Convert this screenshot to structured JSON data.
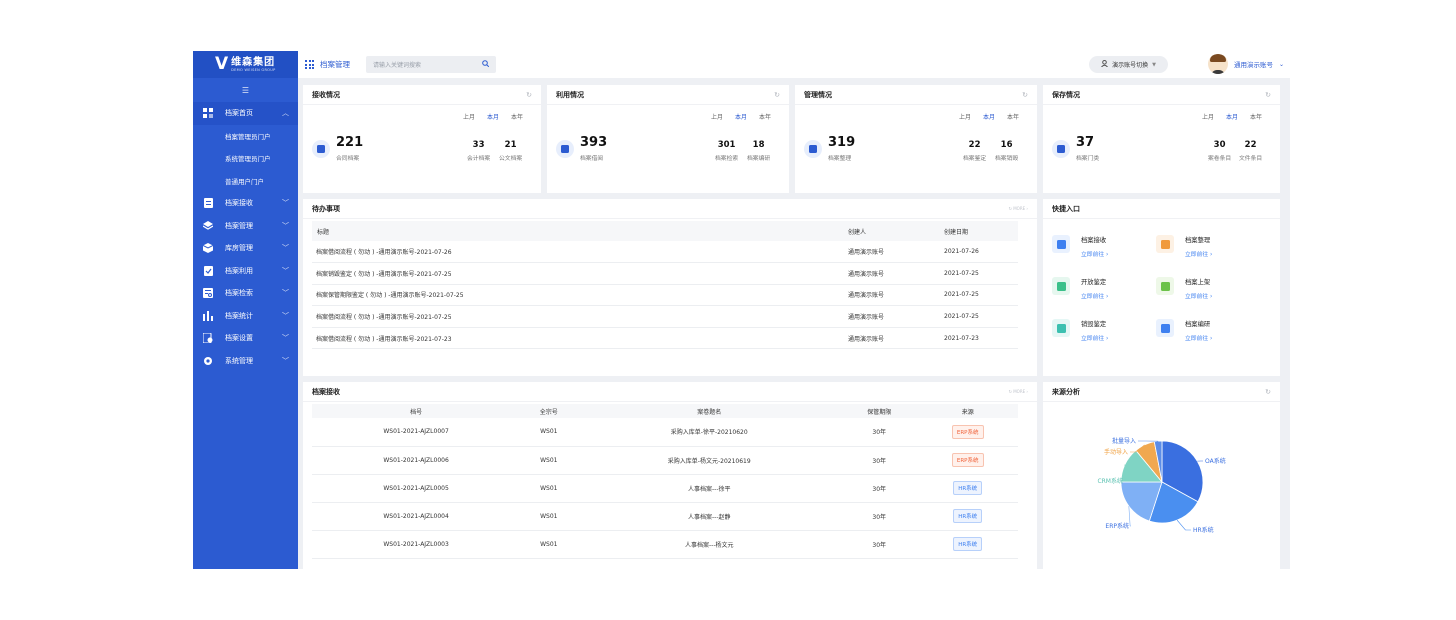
{
  "brand": {
    "name_cn": "维森集团",
    "name_en": "DEMO WEISEN GROUP"
  },
  "sidebar": {
    "items": [
      {
        "label": "档案首页",
        "active": true,
        "icon": "home-grid-icon",
        "expanded": true
      },
      {
        "label": "档案接收",
        "icon": "document-icon"
      },
      {
        "label": "档案管理",
        "icon": "layers-icon"
      },
      {
        "label": "库房管理",
        "icon": "box-icon"
      },
      {
        "label": "档案利用",
        "icon": "checklist-icon"
      },
      {
        "label": "档案检索",
        "icon": "search-doc-icon"
      },
      {
        "label": "档案统计",
        "icon": "bar-chart-icon"
      },
      {
        "label": "档案设置",
        "icon": "settings-doc-icon"
      },
      {
        "label": "系统管理",
        "icon": "gear-icon"
      }
    ],
    "subitems": [
      "档案管理员门户",
      "系统管理员门户",
      "普通用户门户"
    ]
  },
  "topbar": {
    "title": "档案管理",
    "search_placeholder": "请输入关键词搜索",
    "switch_label": "演示账号切换",
    "user_name": "通用演示账号"
  },
  "stats": [
    {
      "title": "接收情况",
      "tabs": [
        "上月",
        "本月",
        "本年"
      ],
      "active_tab": "本月",
      "main_value": "221",
      "main_label": "合同档案",
      "minis": [
        {
          "value": "33",
          "label": "会计档案"
        },
        {
          "value": "21",
          "label": "公文档案"
        }
      ]
    },
    {
      "title": "利用情况",
      "tabs": [
        "上月",
        "本月",
        "本年"
      ],
      "active_tab": "本月",
      "main_value": "393",
      "main_label": "档案借阅",
      "minis": [
        {
          "value": "301",
          "label": "档案检索"
        },
        {
          "value": "18",
          "label": "档案编研"
        }
      ]
    },
    {
      "title": "管理情况",
      "tabs": [
        "上月",
        "本月",
        "本年"
      ],
      "active_tab": "本月",
      "main_value": "319",
      "main_label": "档案整理",
      "minis": [
        {
          "value": "22",
          "label": "档案鉴定"
        },
        {
          "value": "16",
          "label": "档案销毁"
        }
      ]
    },
    {
      "title": "保存情况",
      "tabs": [
        "上月",
        "本月",
        "本年"
      ],
      "active_tab": "本月",
      "main_value": "37",
      "main_label": "档案门类",
      "minis": [
        {
          "value": "30",
          "label": "案卷条目"
        },
        {
          "value": "22",
          "label": "文件条目"
        }
      ]
    }
  ],
  "todo": {
    "title": "待办事项",
    "more": "MORE",
    "columns": [
      "标题",
      "创建人",
      "创建日期"
    ],
    "rows": [
      [
        "档案借阅流程 ( 勿动 ) -通用演示账号-2021-07-26",
        "通用演示账号",
        "2021-07-26"
      ],
      [
        "档案销毁鉴定 ( 勿动 ) -通用演示账号-2021-07-25",
        "通用演示账号",
        "2021-07-25"
      ],
      [
        "档案保管期限鉴定 ( 勿动 ) -通用演示账号-2021-07-25",
        "通用演示账号",
        "2021-07-25"
      ],
      [
        "档案借阅流程 ( 勿动 ) -通用演示账号-2021-07-25",
        "通用演示账号",
        "2021-07-25"
      ],
      [
        "档案借阅流程 ( 勿动 ) -通用演示账号-2021-07-23",
        "通用演示账号",
        "2021-07-23"
      ]
    ]
  },
  "quick": {
    "title": "快捷入口",
    "go_label": "立即前往 ›",
    "items": [
      {
        "name": "档案接收",
        "icon": "download-icon",
        "color": "#3f80f0",
        "bg": "#e9f1fe"
      },
      {
        "name": "档案整理",
        "icon": "file-sort-icon",
        "color": "#f09a3c",
        "bg": "#fdf1e4"
      },
      {
        "name": "开放鉴定",
        "icon": "clipboard-check-icon",
        "color": "#3cc08a",
        "bg": "#e6f7ef"
      },
      {
        "name": "档案上架",
        "icon": "shelf-icon",
        "color": "#6cc24a",
        "bg": "#eef8e8"
      },
      {
        "name": "销毁鉴定",
        "icon": "trash-icon",
        "color": "#3cc0b0",
        "bg": "#e5f7f5"
      },
      {
        "name": "档案编研",
        "icon": "edit-doc-icon",
        "color": "#3f80f0",
        "bg": "#e9f1fe"
      }
    ]
  },
  "archive": {
    "title": "档案接收",
    "more": "MORE",
    "columns": [
      "档号",
      "全宗号",
      "案卷题名",
      "保管期限",
      "来源"
    ],
    "rows": [
      {
        "code": "WS01-2021-AJZL0007",
        "fonds": "WS01",
        "name": "采购入库单-徐平-20210620",
        "term": "30年",
        "source": "ERP系统",
        "kind": "erp"
      },
      {
        "code": "WS01-2021-AJZL0006",
        "fonds": "WS01",
        "name": "采购入库单-杨文元-20210619",
        "term": "30年",
        "source": "ERP系统",
        "kind": "erp"
      },
      {
        "code": "WS01-2021-AJZL0005",
        "fonds": "WS01",
        "name": "人事档案---徐平",
        "term": "30年",
        "source": "HR系统",
        "kind": "hr"
      },
      {
        "code": "WS01-2021-AJZL0004",
        "fonds": "WS01",
        "name": "人事档案---赵静",
        "term": "30年",
        "source": "HR系统",
        "kind": "hr"
      },
      {
        "code": "WS01-2021-AJZL0003",
        "fonds": "WS01",
        "name": "人事档案---杨文元",
        "term": "30年",
        "source": "HR系统",
        "kind": "hr"
      }
    ]
  },
  "source_analysis": {
    "title": "来源分析",
    "chart_data": {
      "type": "pie",
      "series": [
        {
          "values": [
            {
              "label": "OA系统",
              "value": 33,
              "color": "#3a6fe0"
            },
            {
              "label": "HR系统",
              "value": 22,
              "color": "#4a8ff0"
            },
            {
              "label": "ERP系统",
              "value": 20,
              "color": "#7fb0f5"
            },
            {
              "label": "CRM系统",
              "value": 14,
              "color": "#7fd4c4"
            },
            {
              "label": "手动导入",
              "value": 8,
              "color": "#f0a850"
            },
            {
              "label": "批量导入",
              "value": 3,
              "color": "#5b8de8"
            }
          ]
        }
      ],
      "label_colors": {
        "OA系统": "#3a6fe0",
        "HR系统": "#3a6fe0",
        "ERP系统": "#3a6fe0",
        "CRM系统": "#5cc2b2",
        "手动导入": "#f0a040",
        "批量导入": "#3a6fe0"
      }
    }
  }
}
